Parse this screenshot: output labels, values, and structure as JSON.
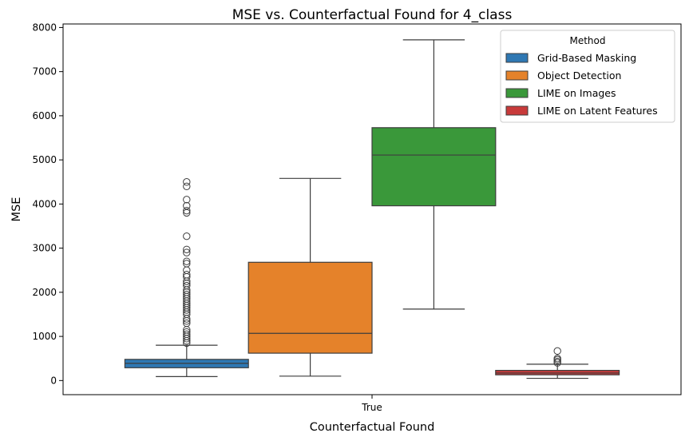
{
  "chart_data": {
    "type": "box",
    "title": "MSE vs. Counterfactual Found for 4_class",
    "xlabel": "Counterfactual Found",
    "ylabel": "MSE",
    "categories": [
      "True"
    ],
    "ylim": [
      -320,
      8080
    ],
    "yticks": [
      0,
      1000,
      2000,
      3000,
      4000,
      5000,
      6000,
      7000,
      8000
    ],
    "grid": false,
    "legend": {
      "title": "Method",
      "placement": "top-right"
    },
    "series": [
      {
        "name": "Grid-Based Masking",
        "color": "#2f78b3",
        "whisker_low": 90,
        "q1": 290,
        "median": 390,
        "q3": 480,
        "whisker_high": 800,
        "outliers": [
          850,
          900,
          950,
          1000,
          1050,
          1100,
          1150,
          1300,
          1350,
          1400,
          1500,
          1550,
          1600,
          1650,
          1700,
          1750,
          1800,
          1850,
          1900,
          1950,
          2000,
          2050,
          2150,
          2200,
          2250,
          2350,
          2400,
          2500,
          2650,
          2700,
          2900,
          2970,
          3270,
          3800,
          3850,
          3960,
          4100,
          4400,
          4500
        ]
      },
      {
        "name": "Object Detection",
        "color": "#e5822a",
        "whisker_low": 100,
        "q1": 620,
        "median": 1070,
        "q3": 2680,
        "whisker_high": 4580,
        "outliers": []
      },
      {
        "name": "LIME on Images",
        "color": "#3a983a",
        "whisker_low": 1620,
        "q1": 3960,
        "median": 5110,
        "q3": 5730,
        "whisker_high": 7720,
        "outliers": []
      },
      {
        "name": "LIME on Latent Features",
        "color": "#c83a3a",
        "whisker_low": 50,
        "q1": 130,
        "median": 170,
        "q3": 230,
        "whisker_high": 370,
        "outliers": [
          400,
          430,
          470,
          500,
          670
        ]
      }
    ]
  }
}
